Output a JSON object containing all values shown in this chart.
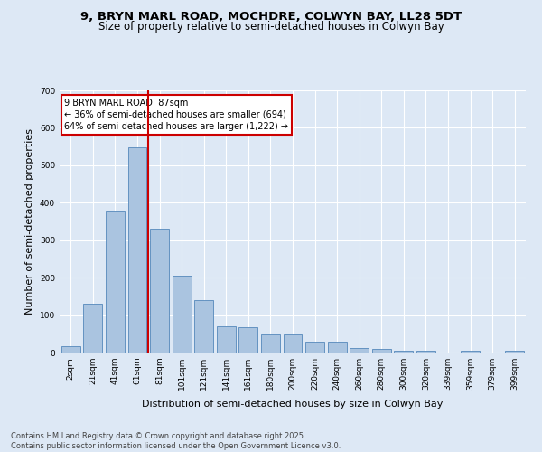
{
  "title_line1": "9, BRYN MARL ROAD, MOCHDRE, COLWYN BAY, LL28 5DT",
  "title_line2": "Size of property relative to semi-detached houses in Colwyn Bay",
  "xlabel": "Distribution of semi-detached houses by size in Colwyn Bay",
  "ylabel": "Number of semi-detached properties",
  "categories": [
    "2sqm",
    "21sqm",
    "41sqm",
    "61sqm",
    "81sqm",
    "101sqm",
    "121sqm",
    "141sqm",
    "161sqm",
    "180sqm",
    "200sqm",
    "220sqm",
    "240sqm",
    "260sqm",
    "280sqm",
    "300sqm",
    "320sqm",
    "339sqm",
    "359sqm",
    "379sqm",
    "399sqm"
  ],
  "values": [
    18,
    130,
    380,
    548,
    330,
    205,
    140,
    70,
    68,
    48,
    48,
    30,
    28,
    12,
    10,
    6,
    5,
    1,
    4,
    0,
    4
  ],
  "bar_color": "#aac4e0",
  "bar_edge_color": "#5588bb",
  "property_bin_index": 3,
  "vline_color": "#cc0000",
  "annotation_box_text": "9 BRYN MARL ROAD: 87sqm\n← 36% of semi-detached houses are smaller (694)\n64% of semi-detached houses are larger (1,222) →",
  "annotation_box_color": "#cc0000",
  "ylim": [
    0,
    700
  ],
  "yticks": [
    0,
    100,
    200,
    300,
    400,
    500,
    600,
    700
  ],
  "footnote": "Contains HM Land Registry data © Crown copyright and database right 2025.\nContains public sector information licensed under the Open Government Licence v3.0.",
  "bg_color": "#dde8f5",
  "plot_bg_color": "#dde8f5",
  "grid_color": "#ffffff",
  "title_fontsize": 9.5,
  "subtitle_fontsize": 8.5,
  "axis_label_fontsize": 8,
  "tick_fontsize": 6.5,
  "footnote_fontsize": 6
}
